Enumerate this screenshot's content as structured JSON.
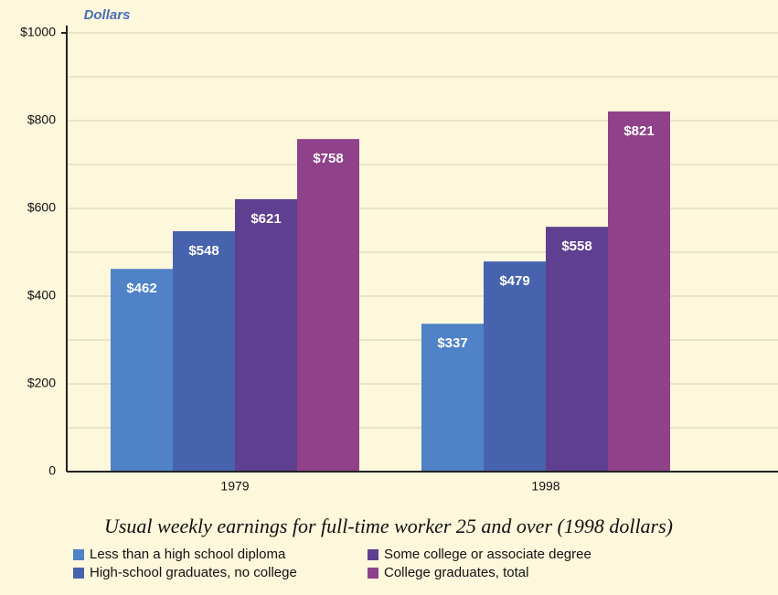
{
  "chart_data": {
    "type": "bar",
    "title": "Usual weekly earnings for full-time worker 25 and over (1998 dollars)",
    "y_label": "Dollars",
    "categories": [
      "1979",
      "1998"
    ],
    "series": [
      {
        "name": "Less than a high school diploma",
        "color": "#4f82c6",
        "values": [
          462,
          337
        ],
        "value_labels": [
          "$462",
          "$337"
        ]
      },
      {
        "name": "High-school graduates, no college",
        "color": "#4763ae",
        "values": [
          548,
          479
        ],
        "value_labels": [
          "$548",
          "$479"
        ]
      },
      {
        "name": "Some college or associate degree",
        "color": "#5f3f8f",
        "values": [
          621,
          558
        ],
        "value_labels": [
          "$621",
          "$558"
        ]
      },
      {
        "name": "College graduates, total",
        "color": "#8f418a",
        "values": [
          758,
          821
        ],
        "value_labels": [
          "$758",
          "$821"
        ]
      }
    ],
    "ylim": [
      0,
      1000
    ],
    "yticks": [
      0,
      {
        "value": 200,
        "label": "$200"
      },
      {
        "value": 400,
        "label": "$400"
      },
      {
        "value": 600,
        "label": "$600"
      },
      {
        "value": 800,
        "label": "$800"
      },
      {
        "value": 1000,
        "label": "$1000"
      }
    ],
    "minor_yticks": [
      100,
      300,
      500,
      700,
      900
    ],
    "grid": true
  }
}
